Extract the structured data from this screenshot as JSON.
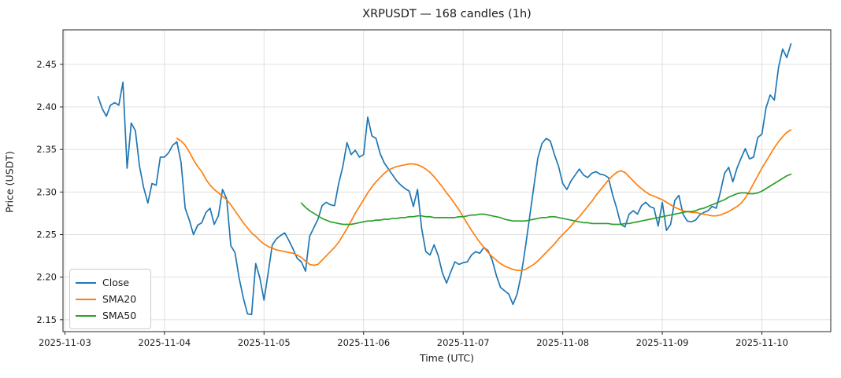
{
  "figure": {
    "title": "XRPUSDT — 168 candles (1h)"
  },
  "chart_data": {
    "type": "line",
    "title": "XRPUSDT — 168 candles (1h)",
    "xlabel": "Time (UTC)",
    "ylabel": "Price (USDT)",
    "grid": true,
    "legend_position": "lower left",
    "x_unit": "hours since 2025-11-03 00:00 UTC",
    "time_step_hours": 1,
    "x_tick_hours": [
      0,
      24,
      48,
      72,
      96,
      120,
      144,
      168
    ],
    "x_tick_labels": [
      "2025-11-03",
      "2025-11-04",
      "2025-11-05",
      "2025-11-06",
      "2025-11-07",
      "2025-11-08",
      "2025-11-09",
      "2025-11-10"
    ],
    "y_ticks": [
      2.15,
      2.2,
      2.25,
      2.3,
      2.35,
      2.4,
      2.45
    ],
    "y_tick_labels": [
      "2.15",
      "2.20",
      "2.25",
      "2.30",
      "2.35",
      "2.40",
      "2.45"
    ],
    "x_axis_range_hours": [
      -0.45,
      184.6
    ],
    "y_axis_range": [
      2.136,
      2.4905
    ],
    "series": [
      {
        "name": "Close",
        "color": "#1f77b4",
        "start_hour": 8,
        "values": [
          2.412,
          2.398,
          2.389,
          2.402,
          2.405,
          2.402,
          2.429,
          2.328,
          2.381,
          2.372,
          2.33,
          2.305,
          2.287,
          2.31,
          2.308,
          2.341,
          2.341,
          2.346,
          2.355,
          2.359,
          2.335,
          2.281,
          2.267,
          2.25,
          2.261,
          2.264,
          2.276,
          2.281,
          2.262,
          2.272,
          2.303,
          2.292,
          2.237,
          2.229,
          2.199,
          2.176,
          2.157,
          2.156,
          2.216,
          2.199,
          2.173,
          2.205,
          2.238,
          2.245,
          2.249,
          2.252,
          2.243,
          2.233,
          2.222,
          2.218,
          2.207,
          2.248,
          2.258,
          2.268,
          2.284,
          2.288,
          2.285,
          2.284,
          2.31,
          2.33,
          2.358,
          2.344,
          2.349,
          2.341,
          2.344,
          2.388,
          2.366,
          2.363,
          2.345,
          2.334,
          2.327,
          2.32,
          2.313,
          2.308,
          2.304,
          2.301,
          2.283,
          2.303,
          2.257,
          2.23,
          2.226,
          2.238,
          2.225,
          2.205,
          2.193,
          2.206,
          2.218,
          2.215,
          2.217,
          2.218,
          2.226,
          2.23,
          2.228,
          2.235,
          2.231,
          2.22,
          2.202,
          2.188,
          2.184,
          2.18,
          2.168,
          2.18,
          2.203,
          2.235,
          2.27,
          2.305,
          2.34,
          2.357,
          2.363,
          2.36,
          2.344,
          2.33,
          2.31,
          2.303,
          2.313,
          2.32,
          2.327,
          2.32,
          2.317,
          2.322,
          2.324,
          2.321,
          2.32,
          2.317,
          2.297,
          2.281,
          2.262,
          2.259,
          2.274,
          2.278,
          2.274,
          2.284,
          2.288,
          2.283,
          2.281,
          2.26,
          2.288,
          2.255,
          2.262,
          2.29,
          2.296,
          2.274,
          2.266,
          2.265,
          2.267,
          2.273,
          2.276,
          2.278,
          2.283,
          2.281,
          2.3,
          2.322,
          2.329,
          2.312,
          2.328,
          2.34,
          2.351,
          2.339,
          2.341,
          2.364,
          2.368,
          2.399,
          2.414,
          2.408,
          2.446,
          2.468,
          2.458,
          2.474
        ]
      },
      {
        "name": "SMA20",
        "color": "#ff7f0e",
        "start_hour": 27,
        "values": [
          2.363,
          2.36,
          2.355,
          2.347,
          2.338,
          2.33,
          2.324,
          2.315,
          2.308,
          2.303,
          2.299,
          2.295,
          2.291,
          2.285,
          2.278,
          2.271,
          2.264,
          2.258,
          2.252,
          2.248,
          2.243,
          2.239,
          2.236,
          2.234,
          2.232,
          2.231,
          2.23,
          2.229,
          2.228,
          2.226,
          2.223,
          2.219,
          2.215,
          2.214,
          2.215,
          2.22,
          2.225,
          2.23,
          2.235,
          2.241,
          2.249,
          2.257,
          2.266,
          2.275,
          2.283,
          2.291,
          2.299,
          2.306,
          2.312,
          2.317,
          2.322,
          2.326,
          2.328,
          2.33,
          2.331,
          2.332,
          2.333,
          2.333,
          2.332,
          2.33,
          2.327,
          2.323,
          2.318,
          2.312,
          2.306,
          2.299,
          2.293,
          2.286,
          2.279,
          2.271,
          2.263,
          2.255,
          2.248,
          2.241,
          2.235,
          2.229,
          2.224,
          2.22,
          2.216,
          2.213,
          2.211,
          2.209,
          2.208,
          2.208,
          2.209,
          2.212,
          2.215,
          2.219,
          2.224,
          2.229,
          2.234,
          2.239,
          2.245,
          2.25,
          2.255,
          2.26,
          2.266,
          2.271,
          2.277,
          2.283,
          2.289,
          2.296,
          2.302,
          2.308,
          2.314,
          2.319,
          2.323,
          2.325,
          2.323,
          2.318,
          2.313,
          2.308,
          2.304,
          2.3,
          2.297,
          2.295,
          2.293,
          2.291,
          2.288,
          2.285,
          2.282,
          2.28,
          2.278,
          2.277,
          2.276,
          2.276,
          2.275,
          2.274,
          2.273,
          2.272,
          2.272,
          2.273,
          2.275,
          2.277,
          2.28,
          2.283,
          2.287,
          2.293,
          2.301,
          2.31,
          2.319,
          2.328,
          2.336,
          2.344,
          2.352,
          2.359,
          2.365,
          2.37,
          2.373
        ]
      },
      {
        "name": "SMA50",
        "color": "#2ca02c",
        "start_hour": 57,
        "values": [
          2.287,
          2.282,
          2.278,
          2.275,
          2.272,
          2.269,
          2.267,
          2.265,
          2.264,
          2.263,
          2.262,
          2.262,
          2.262,
          2.263,
          2.264,
          2.265,
          2.266,
          2.266,
          2.267,
          2.267,
          2.268,
          2.268,
          2.269,
          2.269,
          2.27,
          2.27,
          2.271,
          2.271,
          2.272,
          2.272,
          2.271,
          2.271,
          2.27,
          2.27,
          2.27,
          2.27,
          2.27,
          2.27,
          2.271,
          2.271,
          2.272,
          2.273,
          2.273,
          2.274,
          2.274,
          2.273,
          2.272,
          2.271,
          2.27,
          2.268,
          2.267,
          2.266,
          2.266,
          2.266,
          2.266,
          2.267,
          2.268,
          2.269,
          2.27,
          2.27,
          2.271,
          2.271,
          2.27,
          2.269,
          2.268,
          2.267,
          2.266,
          2.265,
          2.264,
          2.264,
          2.263,
          2.263,
          2.263,
          2.263,
          2.263,
          2.262,
          2.262,
          2.262,
          2.263,
          2.263,
          2.264,
          2.265,
          2.266,
          2.267,
          2.268,
          2.269,
          2.27,
          2.271,
          2.272,
          2.273,
          2.274,
          2.275,
          2.276,
          2.277,
          2.277,
          2.278,
          2.28,
          2.281,
          2.283,
          2.285,
          2.287,
          2.289,
          2.291,
          2.294,
          2.296,
          2.298,
          2.299,
          2.299,
          2.298,
          2.298,
          2.299,
          2.301,
          2.304,
          2.307,
          2.31,
          2.313,
          2.316,
          2.319,
          2.321
        ]
      }
    ],
    "style": {
      "grid_color": "#e0e0e0",
      "spine_color": "#262626",
      "text_color": "#1a1a1a",
      "background": "#ffffff"
    }
  }
}
